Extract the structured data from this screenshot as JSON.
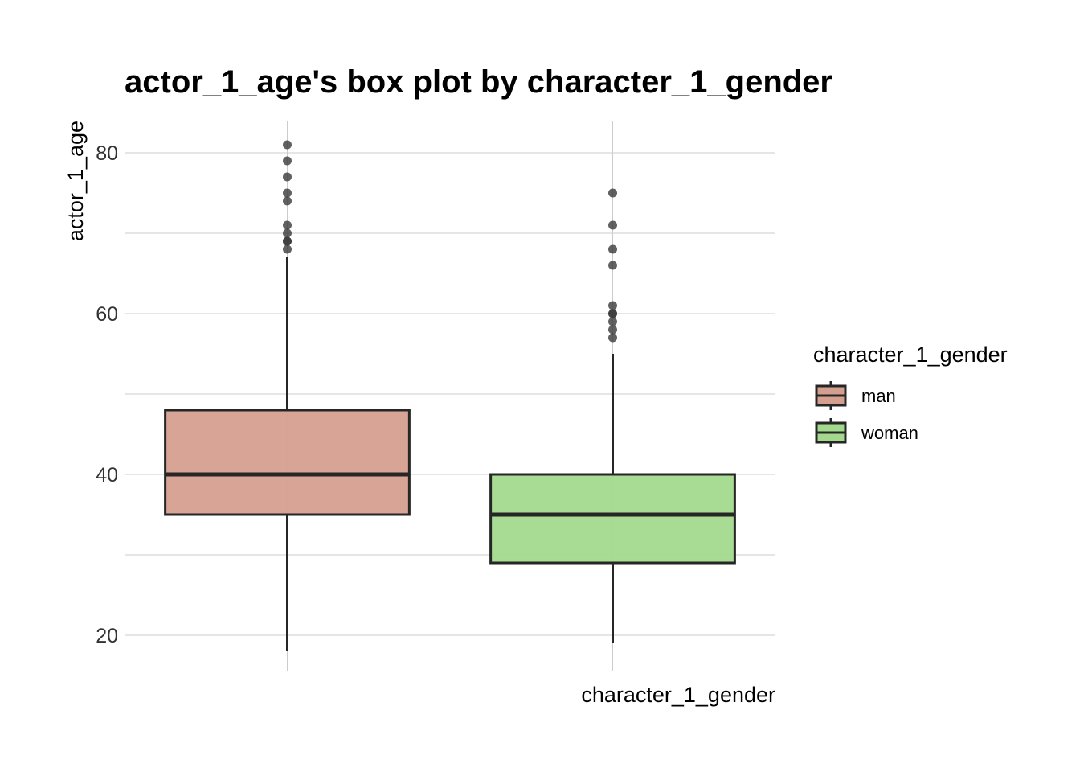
{
  "chart_data": {
    "type": "box",
    "title": "actor_1_age's box plot by character_1_gender",
    "xlabel": "character_1_gender",
    "ylabel": "actor_1_age",
    "ylim": [
      15.5,
      84
    ],
    "y_ticks": [
      20,
      40,
      60,
      80
    ],
    "y_tick_labels": [
      "20",
      "40",
      "60",
      "80"
    ],
    "grid": true,
    "legend": {
      "title": "character_1_gender",
      "position": "right",
      "items": [
        {
          "label": "man",
          "color": "#d59f90"
        },
        {
          "label": "woman",
          "color": "#a3d98d"
        }
      ]
    },
    "series": [
      {
        "name": "man",
        "color": "#d59f90",
        "whisker_low": 18,
        "q1": 35,
        "median": 40,
        "q3": 48,
        "whisker_high": 67,
        "outliers": [
          68,
          69,
          69,
          70,
          71,
          74,
          75,
          77,
          79,
          81
        ]
      },
      {
        "name": "woman",
        "color": "#a3d98d",
        "whisker_low": 19,
        "q1": 29,
        "median": 35,
        "q3": 40,
        "whisker_high": 55,
        "outliers": [
          57,
          58,
          59,
          60,
          60,
          61,
          66,
          68,
          71,
          75
        ]
      }
    ],
    "colors": {
      "grid": "#cccccc",
      "box_stroke": "#262626",
      "outlier": "#3a3a3a"
    }
  }
}
